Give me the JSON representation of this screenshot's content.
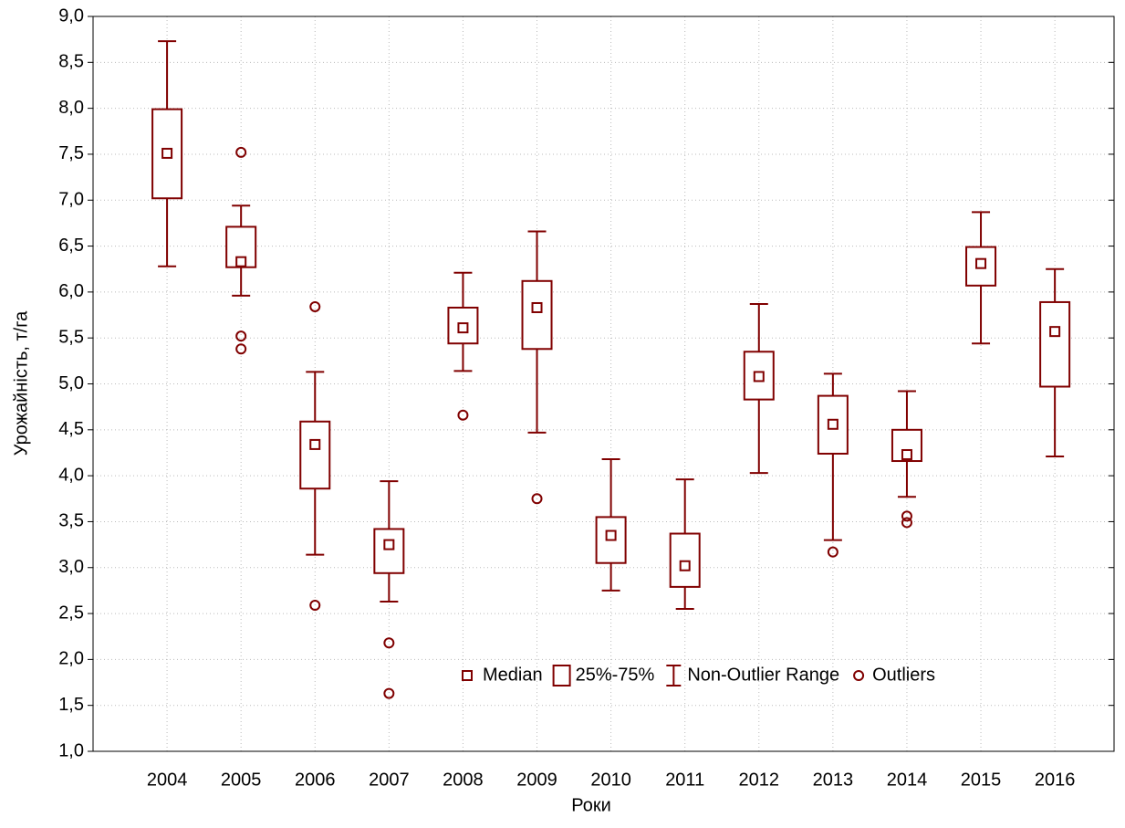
{
  "chart_data": {
    "type": "box",
    "xlabel": "Роки",
    "ylabel": "Урожайність, т/га",
    "categories": [
      "2004",
      "2005",
      "2006",
      "2007",
      "2008",
      "2009",
      "2010",
      "2011",
      "2012",
      "2013",
      "2014",
      "2015",
      "2016"
    ],
    "median": [
      7.51,
      6.33,
      4.34,
      3.25,
      5.61,
      5.83,
      3.35,
      3.02,
      5.08,
      4.56,
      4.23,
      6.31,
      5.57
    ],
    "q1": [
      7.02,
      6.27,
      3.86,
      2.94,
      5.44,
      5.38,
      3.05,
      2.79,
      4.83,
      4.24,
      4.16,
      6.07,
      4.97
    ],
    "q3": [
      7.99,
      6.71,
      4.59,
      3.42,
      5.83,
      6.12,
      3.55,
      3.37,
      5.35,
      4.87,
      4.5,
      6.49,
      5.89
    ],
    "whisker_low": [
      6.28,
      5.96,
      3.14,
      2.63,
      5.14,
      4.47,
      2.75,
      2.55,
      4.03,
      3.3,
      3.77,
      5.44,
      4.21
    ],
    "whisker_high": [
      8.73,
      6.94,
      5.13,
      3.94,
      6.21,
      6.66,
      4.18,
      3.96,
      5.87,
      5.11,
      4.92,
      6.87,
      6.25
    ],
    "outliers": [
      [],
      [
        7.52,
        5.52,
        5.38
      ],
      [
        5.84,
        2.59
      ],
      [
        2.18,
        1.63
      ],
      [
        4.66
      ],
      [
        3.75
      ],
      [],
      [],
      [],
      [
        3.17
      ],
      [
        3.56,
        3.49
      ],
      [],
      []
    ],
    "color": "#800000",
    "legend": {
      "median": "Median",
      "box": "25%-75%",
      "whisker": "Non-Outlier Range",
      "outlier": "Outliers"
    },
    "ylim": [
      1,
      9
    ],
    "yticks": [
      {
        "value": 1,
        "label": "1,0"
      },
      {
        "value": 1.5,
        "label": "1,5"
      },
      {
        "value": 2,
        "label": "2,0"
      },
      {
        "value": 2.5,
        "label": "2,5"
      },
      {
        "value": 3,
        "label": "3,0"
      },
      {
        "value": 3.5,
        "label": "3,5"
      },
      {
        "value": 4,
        "label": "4,0"
      },
      {
        "value": 4.5,
        "label": "4,5"
      },
      {
        "value": 5,
        "label": "5,0"
      },
      {
        "value": 5.5,
        "label": "5,5"
      },
      {
        "value": 6,
        "label": "6,0"
      },
      {
        "value": 6.5,
        "label": "6,5"
      },
      {
        "value": 7,
        "label": "7,0"
      },
      {
        "value": 7.5,
        "label": "7,5"
      },
      {
        "value": 8,
        "label": "8,0"
      },
      {
        "value": 8.5,
        "label": "8,5"
      },
      {
        "value": 9,
        "label": "9,0"
      }
    ],
    "grid": true
  }
}
